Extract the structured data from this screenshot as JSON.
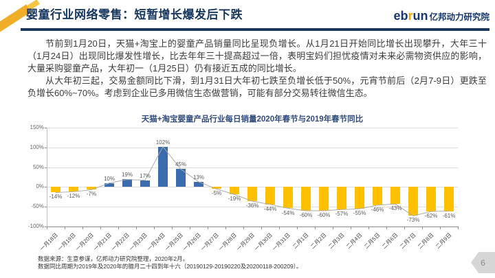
{
  "header": {
    "title": "婴童行业网络零售：短暂增长爆发后下跌",
    "logo": {
      "eb": "eb",
      "r": "r",
      "un": "un",
      "cn": "亿邦动力研究院"
    }
  },
  "body": {
    "paragraph1": "节前到1月20日，天猫+淘宝上的婴童产品销量同比呈现负增长。从1月21日开始同比增长出现攀升，大年三十（1月24日）出现同比爆发性增长，比去年年三十提高超过一倍，表明宝妈们担忧疫情对未来必需物资供应的影响，大量采购婴童产品，大年初一（1月25日）仍有接近五成的同比增长。",
    "paragraph2": "从大年初三起，交易金额同比下滑，到1月31日大年初七跌至负增长低于50%，元宵节前后（2月7-9日）更跌至负增长60%~70%。考虑到企业已多用微信生态做营销，可能有部分交易转往微信生态。"
  },
  "chart_data": {
    "type": "bar",
    "title": "天猫+淘宝婴童产品行业每日销量2020年春节与2019年春节同比",
    "categories": [
      "一月18日",
      "一月19日",
      "一月20日",
      "一月21日",
      "一月22日",
      "一月23日",
      "一月24日",
      "一月25日",
      "一月26日",
      "一月27日",
      "一月28日",
      "一月29日",
      "一月30日",
      "一月31日",
      "二月1日",
      "二月2日",
      "二月3日",
      "二月4日",
      "二月5日",
      "二月6日",
      "二月7日",
      "二月8日",
      "二月9日"
    ],
    "values": [
      -14,
      -12,
      -7,
      10,
      19,
      17,
      102,
      45,
      13,
      -5,
      -19,
      -36,
      -44,
      -54,
      -60,
      -60,
      -57,
      -55,
      -46,
      -43,
      -73,
      -62,
      -61
    ],
    "unit": "%",
    "ylim": [
      -100,
      150
    ],
    "y_ticks": [
      150,
      100,
      50,
      0,
      -50,
      -100
    ],
    "grid": true,
    "legend": "none",
    "overlay": "line",
    "positive_color": "#3A6BAC",
    "negative_color": "#FFC000",
    "line_color": "#ABABAB"
  },
  "footnotes": [
    "数据来源：生意参谋，亿邦动力研究院整理，2020年2月。",
    "数据同比周期为2019年及2020年的腊月二十四到年十六（20190129-20190220及20200118-200209）。"
  ],
  "page": {
    "number": "6"
  },
  "colors": {
    "brand_navy": "#17375E",
    "brand_gold": "#EFAD28",
    "positive_bar": "#3A6BAC",
    "negative_bar": "#FFC000"
  }
}
